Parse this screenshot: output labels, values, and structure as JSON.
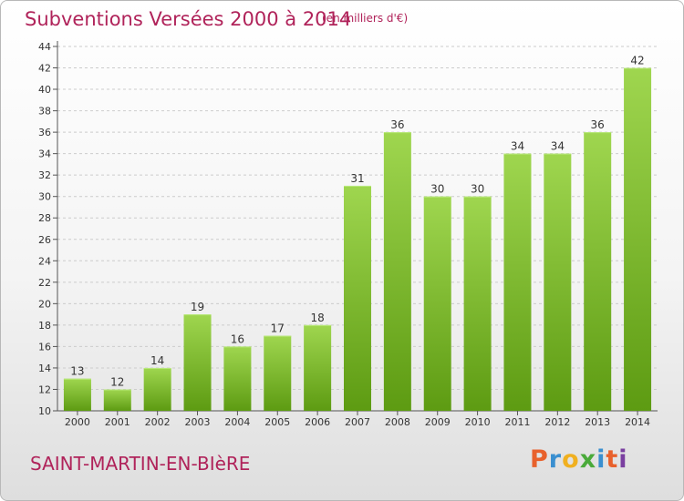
{
  "header": {
    "title": "Subventions Versées 2000 à 2014",
    "subtitle": "(en milliers d'€)"
  },
  "footer": {
    "town": "SAINT-MARTIN-EN-BIèRE",
    "logo_text": "Proxiti",
    "logo_colors": [
      "#e8612c",
      "#3a8fd0",
      "#f0b020",
      "#4aaa3a",
      "#3a8fd0",
      "#e8612c",
      "#7a3fa0"
    ]
  },
  "colors": {
    "title": "#b0235a",
    "bar_light": "#9fd64f",
    "bar_dark": "#5d9b12",
    "grid": "#cccccc"
  },
  "chart_data": {
    "type": "bar",
    "title": "Subventions Versées 2000 à 2014",
    "subtitle": "(en milliers d'€)",
    "xlabel": "",
    "ylabel": "",
    "categories": [
      "2000",
      "2001",
      "2002",
      "2003",
      "2004",
      "2005",
      "2006",
      "2007",
      "2008",
      "2009",
      "2010",
      "2011",
      "2012",
      "2013",
      "2014"
    ],
    "values": [
      13,
      12,
      14,
      19,
      16,
      17,
      18,
      31,
      36,
      30,
      30,
      34,
      34,
      36,
      42
    ],
    "ylim": [
      10,
      44
    ],
    "yticks": [
      10,
      12,
      14,
      16,
      18,
      20,
      22,
      24,
      26,
      28,
      30,
      32,
      34,
      36,
      38,
      40,
      42,
      44
    ],
    "grid": true,
    "data_labels": true
  }
}
